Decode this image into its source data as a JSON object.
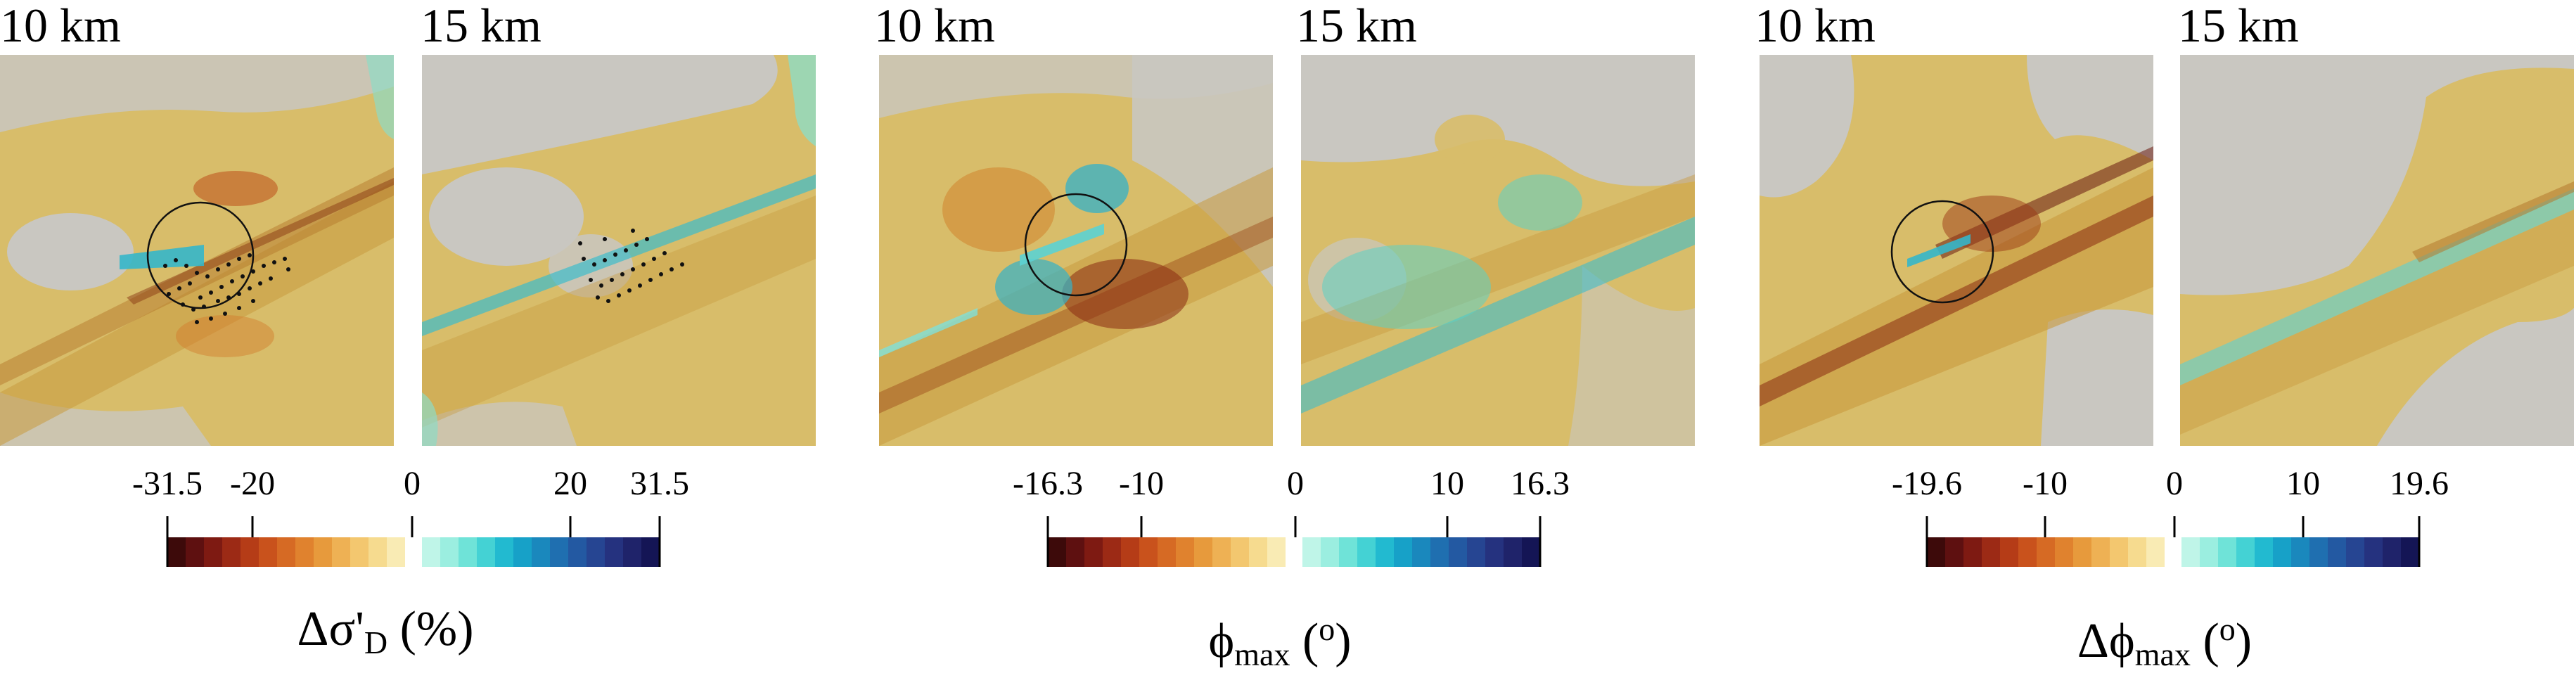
{
  "groups": [
    {
      "panels": [
        {
          "label": "10 km"
        },
        {
          "label": "15 km"
        }
      ],
      "colorbar": {
        "ticks": [
          "-31.5",
          "-20",
          "0",
          "20",
          "31.5"
        ],
        "title": {
          "symbol": "Δσ'",
          "sub": "D",
          "unit": "(%)"
        }
      }
    },
    {
      "panels": [
        {
          "label": "10 km"
        },
        {
          "label": "15 km"
        }
      ],
      "colorbar": {
        "ticks": [
          "-16.3",
          "-10",
          "0",
          "10",
          "16.3"
        ],
        "title": {
          "symbol": "ϕ",
          "sub": "max",
          "unit_prefix": "(",
          "unit_sup": "o",
          "unit_suffix": ")"
        }
      }
    },
    {
      "panels": [
        {
          "label": "10 km"
        },
        {
          "label": "15 km"
        }
      ],
      "colorbar": {
        "ticks": [
          "-19.6",
          "-10",
          "0",
          "10",
          "19.6"
        ],
        "title": {
          "symbol": "Δϕ",
          "sub": "max",
          "unit_prefix": "(",
          "unit_sup": "o",
          "unit_suffix": ")"
        }
      }
    }
  ],
  "colors": {
    "background_gray": "#c9c7c1",
    "neutral_tan": "#d8bd6a",
    "negative_scale": [
      "#3d0a0a",
      "#5e1010",
      "#7e1a12",
      "#9c2a15",
      "#b53c17",
      "#c9521c",
      "#d66a24",
      "#e0822e",
      "#e79a3c",
      "#eeb154",
      "#f3c76f",
      "#f6db8f",
      "#f9ebb4"
    ],
    "positive_scale": [
      "#bff5e8",
      "#9beee0",
      "#6fe3d8",
      "#44d2d4",
      "#22bad0",
      "#17a1c8",
      "#1a88bd",
      "#1f6fb0",
      "#2359a2",
      "#264592",
      "#25327f",
      "#1f236a",
      "#141555"
    ]
  }
}
